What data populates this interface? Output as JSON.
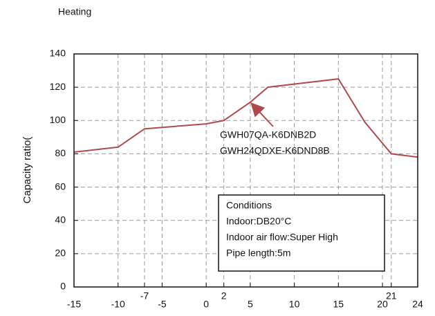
{
  "chart_data": {
    "type": "line",
    "title": "Heating",
    "ylabel": "Capacity ratio(",
    "x": [
      -15,
      -10,
      -7,
      0,
      2,
      5,
      7,
      15,
      18,
      21,
      24
    ],
    "series": [
      {
        "name": "GWH07QA-K6DNB2D",
        "color": "#b04a4a",
        "values": [
          81,
          84,
          95,
          98,
          100,
          111,
          120,
          125,
          99,
          80,
          78
        ]
      }
    ],
    "xlim": [
      -15,
      24
    ],
    "xticks": [
      -15,
      -10,
      -7,
      -5,
      0,
      2,
      5,
      10,
      15,
      20,
      21,
      24
    ],
    "ylim": [
      0,
      140
    ],
    "yticks": [
      0,
      20,
      40,
      60,
      80,
      100,
      120,
      140
    ],
    "grid": true,
    "annotations": [
      "GWH07QA-K6DNB2D",
      "GWH24QDXE-K6DND8B"
    ],
    "conditions": [
      "Conditions",
      "Indoor:DB20°C",
      "Indoor air flow:Super High",
      "Pipe length:5m"
    ]
  }
}
